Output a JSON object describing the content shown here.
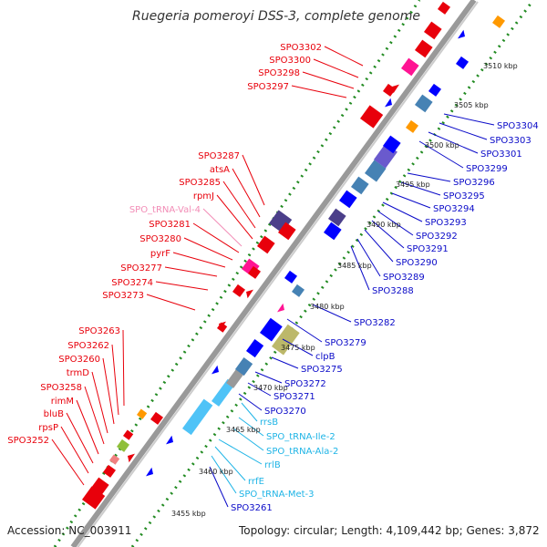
{
  "title": "Ruegeria pomeroyi DSS-3, complete genome",
  "footer": {
    "accession": "Accession: NC_003911",
    "topology": "Topology: circular; Length: 4,109,442 bp; Genes: 3,872"
  },
  "colors": {
    "red_label": "#e8000b",
    "pink_label": "#f28cb6",
    "blue_label": "#0a0ac8",
    "cyan_label": "#1eb4e6",
    "backbone": "#999999",
    "ticks": "#228b22"
  },
  "kbp_ticks": [
    "3455 kbp",
    "3460 kbp",
    "3465 kbp",
    "3470 kbp",
    "3475 kbp",
    "3480 kbp",
    "3485 kbp",
    "3490 kbp",
    "3495 kbp",
    "3500 kbp",
    "3505 kbp",
    "3510 kbp"
  ],
  "left_labels": [
    {
      "text": "SPO3302",
      "color": "red"
    },
    {
      "text": "SPO3300",
      "color": "red"
    },
    {
      "text": "SPO3298",
      "color": "red"
    },
    {
      "text": "SPO3297",
      "color": "red"
    },
    {
      "text": "SPO3287",
      "color": "red"
    },
    {
      "text": "atsA",
      "color": "red"
    },
    {
      "text": "SPO3285",
      "color": "red"
    },
    {
      "text": "rpmJ",
      "color": "red"
    },
    {
      "text": "SPO_tRNA-Val-4",
      "color": "pink"
    },
    {
      "text": "SPO3281",
      "color": "red"
    },
    {
      "text": "SPO3280",
      "color": "red"
    },
    {
      "text": "pyrF",
      "color": "red"
    },
    {
      "text": "SPO3277",
      "color": "red"
    },
    {
      "text": "SPO3274",
      "color": "red"
    },
    {
      "text": "SPO3273",
      "color": "red"
    },
    {
      "text": "SPO3263",
      "color": "red"
    },
    {
      "text": "SPO3262",
      "color": "red"
    },
    {
      "text": "SPO3260",
      "color": "red"
    },
    {
      "text": "trmD",
      "color": "red"
    },
    {
      "text": "SPO3258",
      "color": "red"
    },
    {
      "text": "rimM",
      "color": "red"
    },
    {
      "text": "bluB",
      "color": "red"
    },
    {
      "text": "rpsP",
      "color": "red"
    },
    {
      "text": "SPO3252",
      "color": "red"
    }
  ],
  "right_labels": [
    {
      "text": "SPO3304",
      "color": "blue"
    },
    {
      "text": "SPO3303",
      "color": "blue"
    },
    {
      "text": "SPO3301",
      "color": "blue"
    },
    {
      "text": "SPO3299",
      "color": "blue"
    },
    {
      "text": "SPO3296",
      "color": "blue"
    },
    {
      "text": "SPO3295",
      "color": "blue"
    },
    {
      "text": "SPO3294",
      "color": "blue"
    },
    {
      "text": "SPO3293",
      "color": "blue"
    },
    {
      "text": "SPO3292",
      "color": "blue"
    },
    {
      "text": "SPO3291",
      "color": "blue"
    },
    {
      "text": "SPO3290",
      "color": "blue"
    },
    {
      "text": "SPO3289",
      "color": "blue"
    },
    {
      "text": "SPO3288",
      "color": "blue"
    },
    {
      "text": "SPO3282",
      "color": "blue"
    },
    {
      "text": "SPO3279",
      "color": "blue"
    },
    {
      "text": "clpB",
      "color": "blue"
    },
    {
      "text": "SPO3275",
      "color": "blue"
    },
    {
      "text": "SPO3272",
      "color": "blue"
    },
    {
      "text": "SPO3271",
      "color": "blue"
    },
    {
      "text": "SPO3270",
      "color": "blue"
    },
    {
      "text": "rrsB",
      "color": "cyan"
    },
    {
      "text": "SPO_tRNA-Ile-2",
      "color": "cyan"
    },
    {
      "text": "SPO_tRNA-Ala-2",
      "color": "cyan"
    },
    {
      "text": "rrlB",
      "color": "cyan"
    },
    {
      "text": "rrfE",
      "color": "cyan"
    },
    {
      "text": "SPO_tRNA-Met-3",
      "color": "cyan"
    },
    {
      "text": "SPO3261",
      "color": "blue"
    }
  ]
}
